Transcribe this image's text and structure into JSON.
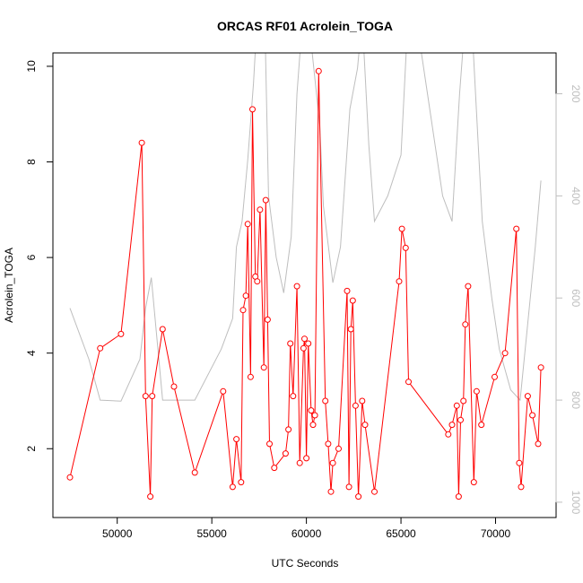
{
  "chart_data": {
    "type": "line",
    "title": "ORCAS RF01 Acrolein_TOGA",
    "xlabel": "UTC Seconds",
    "ylabel": "Acrolein_TOGA",
    "xlim": [
      46600,
      73200
    ],
    "ylim": [
      0.56,
      10.28
    ],
    "x_ticks": [
      50000,
      55000,
      60000,
      65000,
      70000
    ],
    "y_ticks": [
      2,
      4,
      6,
      8,
      10
    ],
    "secondary_axis": {
      "side": "right",
      "reversed": true,
      "lim": [
        120,
        1030
      ],
      "ticks": [
        200,
        400,
        600,
        800,
        1000
      ],
      "color": "#bebebe"
    },
    "grid": false,
    "series": [
      {
        "color": "#ff0000",
        "marker": "open-circle",
        "points": [
          [
            47500,
            1.4
          ],
          [
            49100,
            4.1
          ],
          [
            50200,
            4.4
          ],
          [
            51300,
            8.4
          ],
          [
            51500,
            3.1
          ],
          [
            51750,
            1.0
          ],
          [
            51850,
            3.1
          ],
          [
            52400,
            4.5
          ],
          [
            53000,
            3.3
          ],
          [
            54100,
            1.5
          ],
          [
            55600,
            3.2
          ],
          [
            56100,
            1.2
          ],
          [
            56300,
            2.2
          ],
          [
            56550,
            1.3
          ],
          [
            56650,
            4.9
          ],
          [
            56800,
            5.2
          ],
          [
            56900,
            6.7
          ],
          [
            57050,
            3.5
          ],
          [
            57150,
            9.1
          ],
          [
            57300,
            5.6
          ],
          [
            57400,
            5.5
          ],
          [
            57550,
            7.0
          ],
          [
            57750,
            3.7
          ],
          [
            57850,
            7.2
          ],
          [
            57950,
            4.7
          ],
          [
            58050,
            2.1
          ],
          [
            58300,
            1.6
          ],
          [
            58900,
            1.9
          ],
          [
            59050,
            2.4
          ],
          [
            59150,
            4.2
          ],
          [
            59300,
            3.1
          ],
          [
            59500,
            5.4
          ],
          [
            59650,
            1.7
          ],
          [
            59850,
            4.1
          ],
          [
            59900,
            4.3
          ],
          [
            60000,
            1.8
          ],
          [
            60100,
            4.2
          ],
          [
            60250,
            2.8
          ],
          [
            60350,
            2.5
          ],
          [
            60450,
            2.7
          ],
          [
            60650,
            9.9
          ],
          [
            61000,
            3.0
          ],
          [
            61150,
            2.1
          ],
          [
            61300,
            1.1
          ],
          [
            61400,
            1.7
          ],
          [
            61700,
            2.0
          ],
          [
            62150,
            5.3
          ],
          [
            62250,
            1.2
          ],
          [
            62350,
            4.5
          ],
          [
            62450,
            5.1
          ],
          [
            62600,
            2.9
          ],
          [
            62750,
            1.0
          ],
          [
            62950,
            3.0
          ],
          [
            63100,
            2.5
          ],
          [
            63600,
            1.1
          ],
          [
            64900,
            5.5
          ],
          [
            65050,
            6.6
          ],
          [
            65250,
            6.2
          ],
          [
            65400,
            3.4
          ],
          [
            67500,
            2.3
          ],
          [
            67700,
            2.5
          ],
          [
            67950,
            2.9
          ],
          [
            68050,
            1.0
          ],
          [
            68150,
            2.6
          ],
          [
            68300,
            3.0
          ],
          [
            68400,
            4.6
          ],
          [
            68550,
            5.4
          ],
          [
            68850,
            1.3
          ],
          [
            69000,
            3.2
          ],
          [
            69250,
            2.5
          ],
          [
            69950,
            3.5
          ],
          [
            70500,
            4.0
          ],
          [
            71100,
            6.6
          ],
          [
            71250,
            1.7
          ],
          [
            71350,
            1.2
          ],
          [
            71700,
            3.1
          ],
          [
            71950,
            2.7
          ],
          [
            72250,
            2.1
          ],
          [
            72400,
            3.7
          ]
        ]
      },
      {
        "color": "#bebebe",
        "axis": "right",
        "points": [
          [
            47500,
            620
          ],
          [
            48500,
            720
          ],
          [
            49100,
            800
          ],
          [
            50200,
            802
          ],
          [
            51200,
            720
          ],
          [
            51500,
            620
          ],
          [
            51800,
            560
          ],
          [
            52400,
            800
          ],
          [
            53000,
            800
          ],
          [
            54100,
            800
          ],
          [
            55500,
            700
          ],
          [
            56100,
            640
          ],
          [
            56300,
            500
          ],
          [
            56600,
            450
          ],
          [
            56900,
            330
          ],
          [
            57200,
            180
          ],
          [
            57400,
            50
          ],
          [
            57800,
            50
          ],
          [
            58000,
            400
          ],
          [
            58400,
            520
          ],
          [
            58800,
            590
          ],
          [
            59200,
            480
          ],
          [
            59500,
            200
          ],
          [
            59700,
            100
          ],
          [
            60050,
            50
          ],
          [
            60250,
            100
          ],
          [
            60700,
            260
          ],
          [
            60900,
            420
          ],
          [
            61400,
            570
          ],
          [
            61800,
            500
          ],
          [
            62300,
            230
          ],
          [
            62700,
            150
          ],
          [
            62950,
            50
          ],
          [
            63300,
            300
          ],
          [
            63600,
            450
          ],
          [
            64300,
            400
          ],
          [
            65000,
            320
          ],
          [
            65300,
            100
          ],
          [
            65800,
            50
          ],
          [
            66400,
            200
          ],
          [
            67200,
            400
          ],
          [
            67700,
            450
          ],
          [
            68100,
            200
          ],
          [
            68400,
            50
          ],
          [
            68800,
            100
          ],
          [
            69300,
            450
          ],
          [
            69800,
            600
          ],
          [
            70200,
            700
          ],
          [
            70800,
            780
          ],
          [
            71300,
            800
          ],
          [
            71700,
            650
          ],
          [
            72100,
            500
          ],
          [
            72400,
            370
          ]
        ]
      }
    ]
  }
}
